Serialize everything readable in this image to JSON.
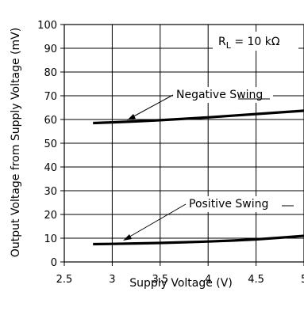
{
  "chart_data": {
    "type": "line",
    "xlabel": "Supply Voltage (V)",
    "ylabel": "Output Voltage from Supply Voltage (mV)",
    "xlim": [
      2.5,
      5
    ],
    "ylim": [
      0,
      100
    ],
    "x_ticks": [
      "2.5",
      "3",
      "3.5",
      "4",
      "4.5",
      "5"
    ],
    "y_ticks": [
      "0",
      "10",
      "20",
      "30",
      "40",
      "50",
      "60",
      "70",
      "80",
      "90",
      "100"
    ],
    "x_tick_values": [
      2.5,
      3,
      3.5,
      4,
      4.5,
      5
    ],
    "y_tick_values": [
      0,
      10,
      20,
      30,
      40,
      50,
      60,
      70,
      80,
      90,
      100
    ],
    "grid": true,
    "series": [
      {
        "name": "Negative Swing",
        "x": [
          2.8,
          3.0,
          3.25,
          3.5,
          3.75,
          4.0,
          4.25,
          4.5,
          4.75,
          5.0
        ],
        "values": [
          58.5,
          58.8,
          59.2,
          59.7,
          60.3,
          60.9,
          61.6,
          62.3,
          63.0,
          63.7
        ]
      },
      {
        "name": "Positive Swing",
        "x": [
          2.8,
          3.0,
          3.25,
          3.5,
          3.75,
          4.0,
          4.25,
          4.5,
          4.75,
          5.0
        ],
        "values": [
          7.5,
          7.6,
          7.8,
          8.0,
          8.3,
          8.6,
          9.0,
          9.5,
          10.2,
          11.0
        ]
      }
    ],
    "annotations": {
      "rl_prefix": "R",
      "rl_sub": "L",
      "rl_rest": " = 10 kΩ",
      "negative": "Negative Swing",
      "positive": "Positive Swing"
    }
  }
}
